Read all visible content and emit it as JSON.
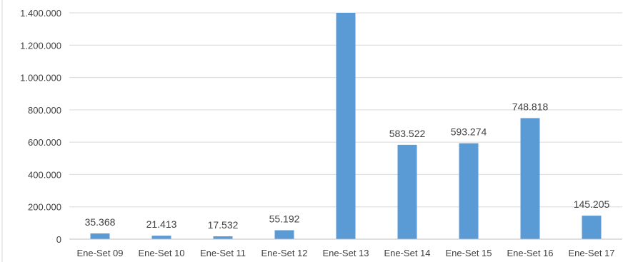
{
  "chart_data": {
    "type": "bar",
    "categories": [
      "Ene-Set 09",
      "Ene-Set 10",
      "Ene-Set 11",
      "Ene-Set 12",
      "Ene-Set 13",
      "Ene-Set 14",
      "Ene-Set 15",
      "Ene-Set 16",
      "Ene-Set 17"
    ],
    "values": [
      35368,
      21413,
      17532,
      55192,
      1400000,
      583522,
      593274,
      748818,
      145205
    ],
    "data_labels": [
      "35.368",
      "21.413",
      "17.532",
      "55.192",
      "",
      "583.522",
      "593.274",
      "748.818",
      "145.205"
    ],
    "ylim": [
      0,
      1400000
    ],
    "yticks": [
      0,
      200000,
      400000,
      600000,
      800000,
      1000000,
      1200000,
      1400000
    ],
    "ytick_labels": [
      "0",
      "200.000",
      "400.000",
      "600.000",
      "800.000",
      "1.000.000",
      "1.200.000",
      "1.400.000"
    ],
    "grid": true,
    "legend": "none",
    "bar_color": "#5b9bd5"
  }
}
